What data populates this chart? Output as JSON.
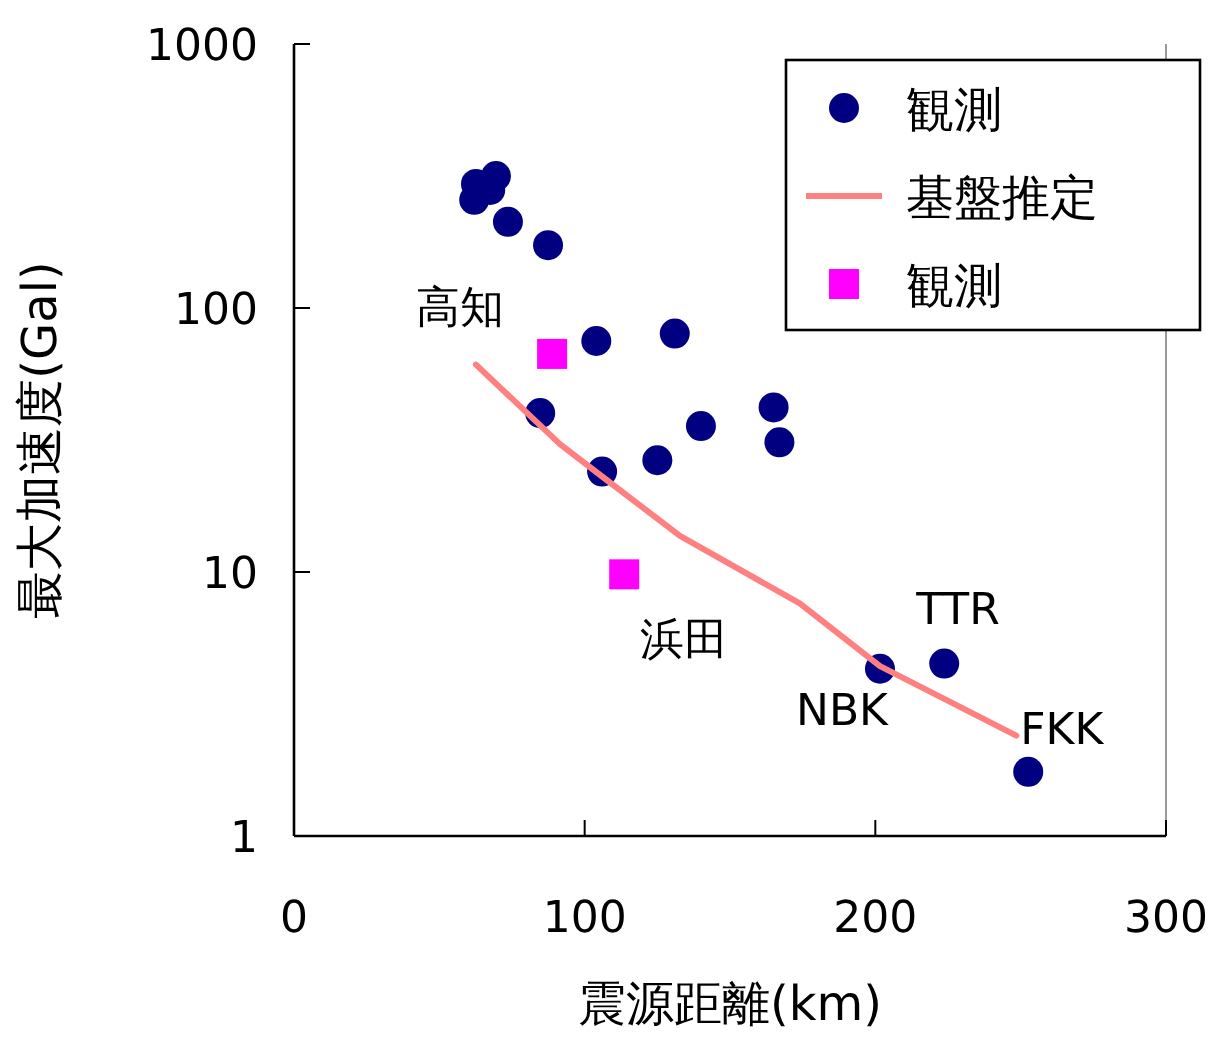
{
  "chart_data": {
    "type": "scatter",
    "xlabel": "震源距離(km)",
    "ylabel": "最大加速度(Gal)",
    "log": "y",
    "xlim": [
      0,
      300
    ],
    "xticks": [
      0,
      100,
      200,
      300
    ],
    "ylim": [
      1,
      1000
    ],
    "yticks": [
      1,
      10,
      100,
      1000
    ],
    "grid": false,
    "legend": "top right",
    "series": [
      {
        "name": "観測",
        "marker": "circle",
        "color": "#000080",
        "x": [
          62.6,
          69.5,
          67.5,
          62,
          73.6,
          87.4,
          104,
          131,
          84.7,
          106,
          125,
          140,
          165,
          167,
          201.6,
          223.7,
          252.6
        ],
        "values": [
          295,
          316,
          280,
          257,
          212,
          173,
          75,
          80,
          40,
          24,
          26.5,
          35.7,
          42,
          31,
          4.3,
          4.5,
          1.75
        ]
      },
      {
        "name": "基盤推定",
        "type": "line",
        "marker": "none",
        "color": "#ff8080",
        "x": [
          62.6,
          91.5,
          106,
          132.8,
          174,
          201.6,
          248.5
        ],
        "values": [
          61,
          30.5,
          23,
          13.7,
          7.6,
          4.4,
          2.4
        ]
      },
      {
        "name": "観測",
        "marker": "square",
        "color": "#ff00ff",
        "x": [
          88.8,
          113.6
        ],
        "values": [
          67,
          9.8
        ]
      }
    ],
    "annotations": [
      {
        "text": "高知",
        "x": 88.8,
        "y": 67
      },
      {
        "text": "浜田",
        "x": 113.6,
        "y": 9.8
      },
      {
        "text": "NBK",
        "x": 201.6,
        "y": 4.3
      },
      {
        "text": "TTR",
        "x": 223.7,
        "y": 4.5
      },
      {
        "text": "FKK",
        "x": 252.6,
        "y": 1.75
      }
    ]
  }
}
